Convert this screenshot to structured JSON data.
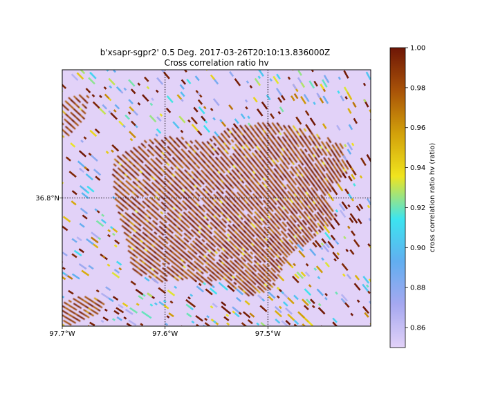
{
  "chart_data": {
    "type": "heatmap",
    "title_line1": "b'xsapr-sgpr2' 0.5 Deg. 2017-03-26T20:10:13.836000Z",
    "title_line2": "Cross correlation ratio hv",
    "x_ticks": [
      {
        "value": -97.7,
        "label": "97.7°W"
      },
      {
        "value": -97.6,
        "label": "97.6°W"
      },
      {
        "value": -97.5,
        "label": "97.5°W"
      }
    ],
    "y_ticks": [
      {
        "value": 36.8,
        "label": "36.8°N"
      }
    ],
    "xlim": [
      -97.7,
      -97.4
    ],
    "ylim": [
      36.675,
      36.925
    ],
    "gridlines": true,
    "gridline_style": "dotted",
    "background_color": "#e2d2f8",
    "colorbar": {
      "label": "cross correlation ratio hv (ratio)",
      "vmin": 0.85,
      "vmax": 1.0,
      "ticks": [
        {
          "value": 0.86,
          "label": "0.86"
        },
        {
          "value": 0.88,
          "label": "0.88"
        },
        {
          "value": 0.9,
          "label": "0.90"
        },
        {
          "value": 0.92,
          "label": "0.92"
        },
        {
          "value": 0.94,
          "label": "0.94"
        },
        {
          "value": 0.96,
          "label": "0.96"
        },
        {
          "value": 0.98,
          "label": "0.98"
        },
        {
          "value": 1.0,
          "label": "1.00"
        }
      ],
      "colormap": [
        "#e2d2f8",
        "#a6a8f0",
        "#62aef0",
        "#3ce4f0",
        "#f0e41e",
        "#d2a00a",
        "#a85208",
        "#6e1606"
      ]
    }
  }
}
